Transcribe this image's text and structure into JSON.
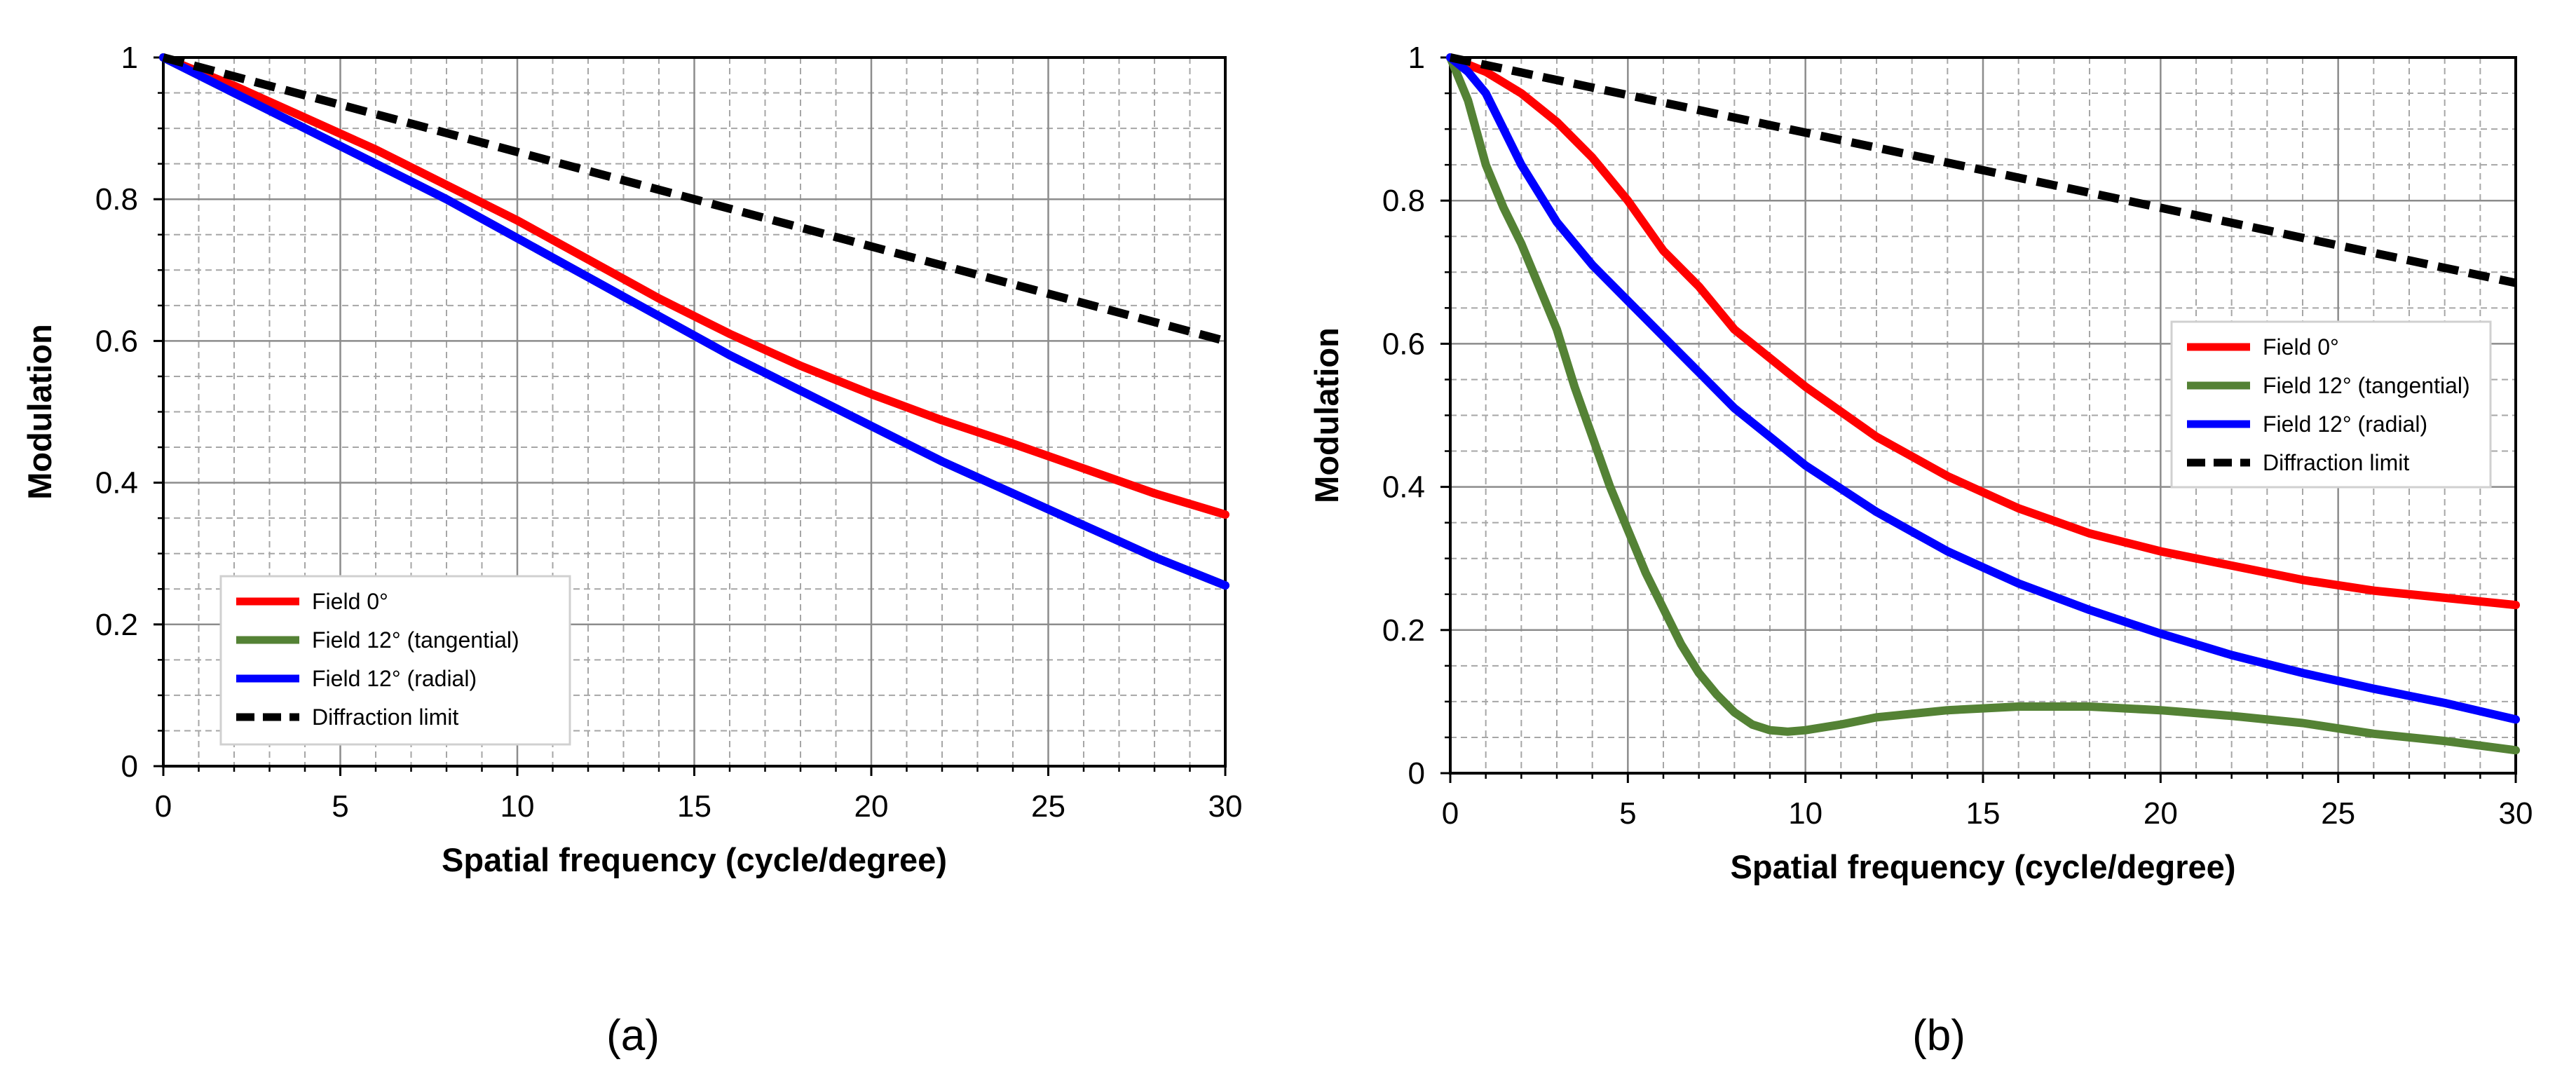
{
  "figure": {
    "panels": [
      "(a)",
      "(b)"
    ]
  },
  "colors": {
    "field0": "#ff0000",
    "field12_tangential": "#548235",
    "field12_radial": "#0000ff",
    "diffraction": "#000000",
    "grid_major": "#8c8c8c",
    "grid_minor": "#a6a6a6"
  },
  "chart_data": [
    {
      "type": "line",
      "panel_label": "(a)",
      "xlabel": "Spatial frequency (cycle/degree)",
      "ylabel": "Modulation",
      "xlim": [
        0,
        30
      ],
      "ylim": [
        0,
        1
      ],
      "xticks": [
        0,
        5,
        10,
        15,
        20,
        25,
        30
      ],
      "yticks": [
        0,
        0.2,
        0.4,
        0.6,
        0.8,
        1
      ],
      "xtick_labels": [
        "0",
        "5",
        "10",
        "15",
        "20",
        "25",
        "30"
      ],
      "ytick_labels": [
        "0",
        "0.2",
        "0.4",
        "0.6",
        "0.8",
        "1"
      ],
      "grid": true,
      "legend_position": "bottom-left",
      "legend": [
        "Field 0°",
        "Field 12° (tangential)",
        "Field 12° (radial)",
        "Diffraction limit"
      ],
      "series": [
        {
          "name": "Field 0°",
          "key": "field0",
          "style": "solid",
          "x": [
            0,
            2,
            4,
            6,
            8,
            10,
            12,
            14,
            16,
            18,
            20,
            22,
            24,
            26,
            28,
            30
          ],
          "y": [
            1.0,
            0.96,
            0.915,
            0.87,
            0.82,
            0.77,
            0.715,
            0.66,
            0.61,
            0.565,
            0.525,
            0.488,
            0.455,
            0.42,
            0.385,
            0.355
          ]
        },
        {
          "name": "Field 12° (tangential)",
          "key": "field12_tangential",
          "style": "solid",
          "hidden_under": "Field 12° (radial)",
          "x": [
            0,
            2,
            4,
            6,
            8,
            10,
            12,
            14,
            16,
            18,
            20,
            22,
            24,
            26,
            28,
            30
          ],
          "y": [
            1.0,
            0.95,
            0.9,
            0.85,
            0.8,
            0.745,
            0.69,
            0.635,
            0.58,
            0.53,
            0.48,
            0.43,
            0.385,
            0.34,
            0.295,
            0.255
          ]
        },
        {
          "name": "Field 12° (radial)",
          "key": "field12_radial",
          "style": "solid",
          "x": [
            0,
            2,
            4,
            6,
            8,
            10,
            12,
            14,
            16,
            18,
            20,
            22,
            24,
            26,
            28,
            30
          ],
          "y": [
            1.0,
            0.95,
            0.9,
            0.85,
            0.8,
            0.745,
            0.69,
            0.635,
            0.58,
            0.53,
            0.48,
            0.43,
            0.385,
            0.34,
            0.295,
            0.255
          ]
        },
        {
          "name": "Diffraction limit",
          "key": "diffraction",
          "style": "dashed",
          "x": [
            0,
            30
          ],
          "y": [
            1.0,
            0.6
          ]
        }
      ]
    },
    {
      "type": "line",
      "panel_label": "(b)",
      "xlabel": "Spatial frequency (cycle/degree)",
      "ylabel": "Modulation",
      "xlim": [
        0,
        30
      ],
      "ylim": [
        0,
        1
      ],
      "xticks": [
        0,
        5,
        10,
        15,
        20,
        25,
        30
      ],
      "yticks": [
        0,
        0.2,
        0.4,
        0.6,
        0.8,
        1
      ],
      "xtick_labels": [
        "0",
        "5",
        "10",
        "15",
        "20",
        "25",
        "30"
      ],
      "ytick_labels": [
        "0",
        "0.2",
        "0.4",
        "0.6",
        "0.8",
        "1"
      ],
      "grid": true,
      "legend_position": "center-right",
      "legend": [
        "Field 0°",
        "Field 12° (tangential)",
        "Field 12° (radial)",
        "Diffraction limit"
      ],
      "series": [
        {
          "name": "Field 0°",
          "key": "field0",
          "style": "solid",
          "x": [
            0,
            1,
            2,
            3,
            4,
            5,
            6,
            7,
            8,
            9,
            10,
            12,
            14,
            16,
            18,
            20,
            22,
            24,
            26,
            28,
            30
          ],
          "y": [
            1.0,
            0.98,
            0.95,
            0.91,
            0.86,
            0.8,
            0.73,
            0.68,
            0.62,
            0.58,
            0.54,
            0.47,
            0.415,
            0.37,
            0.335,
            0.31,
            0.29,
            0.27,
            0.255,
            0.245,
            0.235
          ]
        },
        {
          "name": "Field 12° (tangential)",
          "key": "field12_tangential",
          "style": "solid",
          "x": [
            0,
            0.5,
            1,
            1.5,
            2,
            2.5,
            3,
            3.5,
            4,
            4.5,
            5,
            5.5,
            6,
            6.5,
            7,
            7.5,
            8,
            8.5,
            9,
            9.5,
            10,
            11,
            12,
            14,
            16,
            18,
            20,
            22,
            24,
            26,
            28,
            30
          ],
          "y": [
            1.0,
            0.94,
            0.85,
            0.79,
            0.74,
            0.68,
            0.62,
            0.54,
            0.47,
            0.4,
            0.34,
            0.28,
            0.23,
            0.18,
            0.14,
            0.11,
            0.085,
            0.068,
            0.06,
            0.058,
            0.06,
            0.068,
            0.078,
            0.088,
            0.093,
            0.093,
            0.088,
            0.08,
            0.07,
            0.055,
            0.045,
            0.032
          ]
        },
        {
          "name": "Field 12° (radial)",
          "key": "field12_radial",
          "style": "solid",
          "x": [
            0,
            0.5,
            1,
            1.5,
            2,
            3,
            4,
            5,
            6,
            7,
            8,
            9,
            10,
            12,
            14,
            16,
            18,
            20,
            22,
            24,
            26,
            28,
            30
          ],
          "y": [
            1.0,
            0.98,
            0.95,
            0.9,
            0.85,
            0.77,
            0.71,
            0.66,
            0.61,
            0.56,
            0.51,
            0.47,
            0.43,
            0.365,
            0.31,
            0.265,
            0.228,
            0.195,
            0.165,
            0.14,
            0.118,
            0.098,
            0.075
          ]
        },
        {
          "name": "Diffraction limit",
          "key": "diffraction",
          "style": "dashed",
          "x": [
            0,
            30
          ],
          "y": [
            1.0,
            0.685
          ]
        }
      ]
    }
  ]
}
